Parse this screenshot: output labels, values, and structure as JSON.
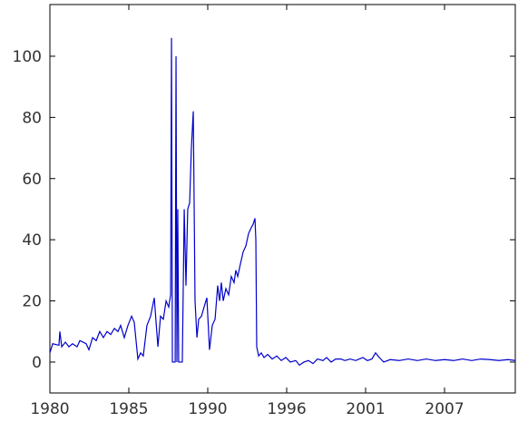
{
  "chart_data": {
    "type": "line",
    "x": [
      1980.0,
      1980.19,
      1980.62,
      1980.68,
      1980.81,
      1981.06,
      1981.3,
      1981.55,
      1981.86,
      1982.05,
      1982.48,
      1982.67,
      1982.92,
      1983.17,
      1983.41,
      1983.66,
      1983.91,
      1984.16,
      1984.41,
      1984.66,
      1984.84,
      1985.09,
      1985.34,
      1985.59,
      1985.77,
      1986.02,
      1986.21,
      1986.39,
      1986.64,
      1986.89,
      1987.14,
      1987.39,
      1987.57,
      1987.76,
      1987.95,
      1988.13,
      1988.26,
      1988.32,
      1988.38,
      1988.57,
      1988.63,
      1988.69,
      1988.75,
      1988.81,
      1988.94,
      1989.06,
      1989.19,
      1989.31,
      1989.43,
      1989.56,
      1989.68,
      1989.81,
      1989.93,
      1990.06,
      1990.18,
      1990.37,
      1990.61,
      1990.74,
      1990.92,
      1991.11,
      1991.3,
      1991.48,
      1991.61,
      1991.73,
      1991.86,
      1992.04,
      1992.23,
      1992.41,
      1992.6,
      1992.72,
      1992.85,
      1993.03,
      1993.22,
      1993.41,
      1993.59,
      1993.78,
      1993.9,
      1994.03,
      1994.09,
      1994.15,
      1994.28,
      1994.46,
      1994.65,
      1994.9,
      1995.21,
      1995.52,
      1995.83,
      1996.14,
      1996.45,
      1996.82,
      1997.07,
      1997.38,
      1997.69,
      1998.0,
      1998.31,
      1998.68,
      1998.93,
      1999.24,
      1999.55,
      1999.92,
      2000.17,
      2000.55,
      2000.92,
      2001.41,
      2001.72,
      2002.03,
      2002.28,
      2002.53,
      2002.84,
      2003.28,
      2003.9,
      2004.52,
      2005.14,
      2005.76,
      2006.38,
      2007.0,
      2007.62,
      2008.24,
      2008.86,
      2009.48,
      2010.1,
      2010.72,
      2011.34,
      2011.84
    ],
    "values": [
      3,
      6,
      5.5,
      10,
      5,
      6.5,
      5,
      6,
      5,
      7,
      6,
      4,
      8,
      7,
      10,
      8,
      10,
      9,
      11,
      10,
      12,
      8,
      12,
      15,
      13,
      1,
      3,
      2,
      12,
      15,
      21,
      5,
      15,
      14,
      20,
      18,
      22,
      106,
      0,
      0,
      100,
      0,
      50,
      0,
      0,
      0,
      50,
      25,
      50,
      52,
      70,
      82,
      20,
      8,
      14,
      15,
      19,
      21,
      4,
      12,
      14,
      25,
      20,
      26,
      20,
      24,
      22,
      28,
      26,
      30,
      28,
      32,
      36,
      38,
      42,
      44,
      45,
      47,
      40,
      5,
      2,
      3,
      1.5,
      2.5,
      1,
      2,
      0.5,
      1.5,
      0,
      0.5,
      -1,
      0,
      0.5,
      -0.5,
      1,
      0.5,
      1.5,
      0,
      1,
      1,
      0.5,
      1,
      0.5,
      1.5,
      0.5,
      1,
      3,
      1.5,
      0,
      0.8,
      0.5,
      1,
      0.5,
      1,
      0.5,
      0.8,
      0.5,
      1,
      0.5,
      1,
      0.8,
      0.5,
      0.8,
      0.5
    ],
    "color": "#0000cc",
    "xlim": [
      1980,
      2011.84
    ],
    "xticks": [
      {
        "value": 1980,
        "label": "1980"
      },
      {
        "value": 1985.4,
        "label": "1985"
      },
      {
        "value": 1990.8,
        "label": "1990"
      },
      {
        "value": 1996.2,
        "label": "1996"
      },
      {
        "value": 2001.6,
        "label": "2001"
      },
      {
        "value": 2007,
        "label": "2007"
      }
    ],
    "ylim": [
      -10.1,
      116.9
    ],
    "yticks": [
      0,
      20,
      40,
      60,
      80,
      100
    ]
  }
}
